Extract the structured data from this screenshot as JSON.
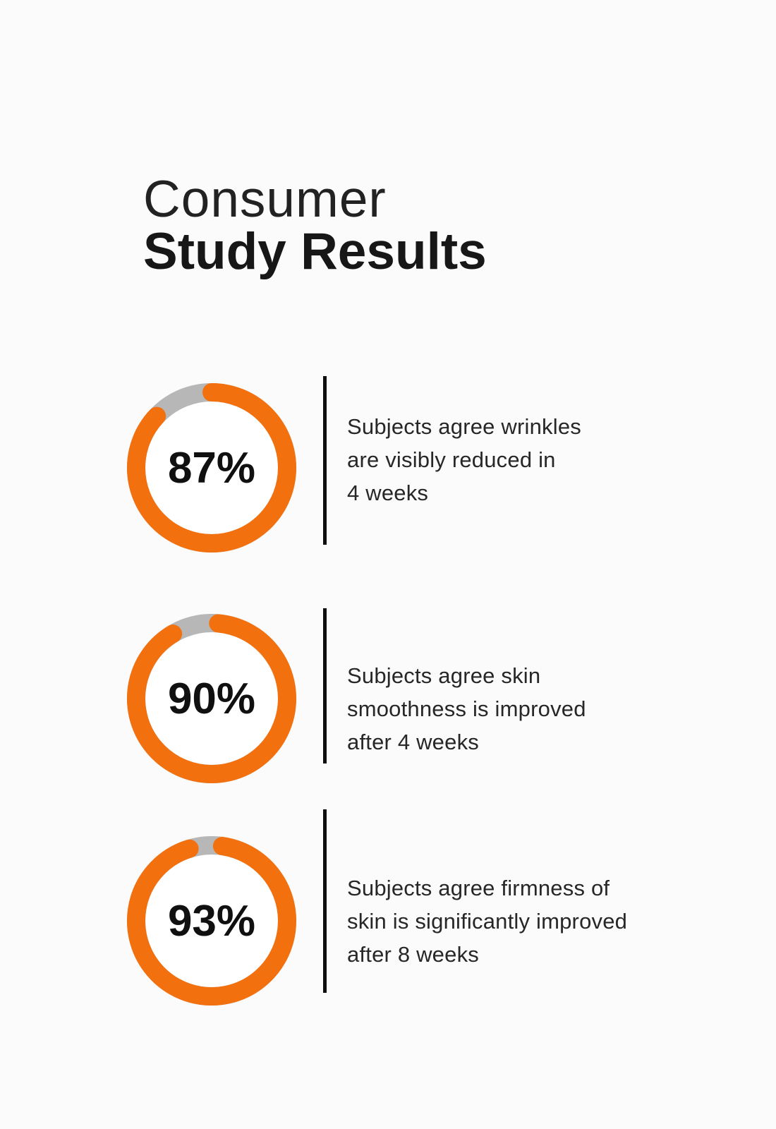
{
  "title": {
    "line1": "Consumer",
    "line2": "Study Results"
  },
  "colors": {
    "accent_orange": "#F3700F",
    "track_gray": "#B7B7B7",
    "divider_black": "#0E0E0E",
    "text_dark": "#272727",
    "background": "#FBFBFB"
  },
  "stats": [
    {
      "pct": 87,
      "pct_label": "87%",
      "lines": [
        "Subjects agree wrinkles",
        "are visibly reduced in",
        "4 weeks"
      ]
    },
    {
      "pct": 90,
      "pct_label": "90%",
      "lines": [
        "Subjects agree skin",
        "smoothness is improved",
        "after 4 weeks"
      ]
    },
    {
      "pct": 93,
      "pct_label": "93%",
      "lines": [
        "Subjects agree firmness of",
        "skin is significantly improved",
        "after 8 weeks"
      ]
    }
  ],
  "chart_data": {
    "type": "pie",
    "variant": "donut-progress",
    "title": "Consumer Study Results",
    "unit": "%",
    "series": [
      {
        "name": "Subjects agree wrinkles are visibly reduced in 4 weeks",
        "value": 87,
        "remainder": 13
      },
      {
        "name": "Subjects agree skin smoothness is improved after 4 weeks",
        "value": 90,
        "remainder": 10
      },
      {
        "name": "Subjects agree firmness of skin is significantly improved after 8 weeks",
        "value": 93,
        "remainder": 7
      }
    ],
    "colors": {
      "filled": "#F3700F",
      "remainder": "#B7B7B7"
    },
    "legend": "none",
    "value_label_position": "center"
  }
}
